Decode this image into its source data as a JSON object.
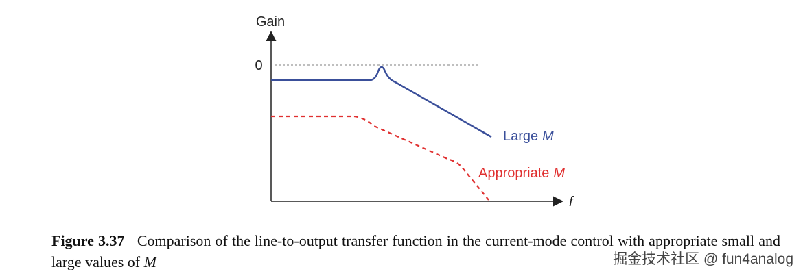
{
  "figure": {
    "y_label": "Gain",
    "x_label": "f",
    "zero_label": "0",
    "curves": [
      {
        "text": "Large",
        "symbol": "M",
        "color": "#3a4f9a"
      },
      {
        "text": "Appropriate",
        "symbol": "M",
        "color": "#e03030"
      }
    ]
  },
  "caption": {
    "label": "Figure 3.37",
    "text": "Comparison of the line-to-output transfer function in the current-mode control with appropriate small and large values of",
    "symbol": "M"
  },
  "watermark": "掘金技术社区 @ fun4analog"
}
